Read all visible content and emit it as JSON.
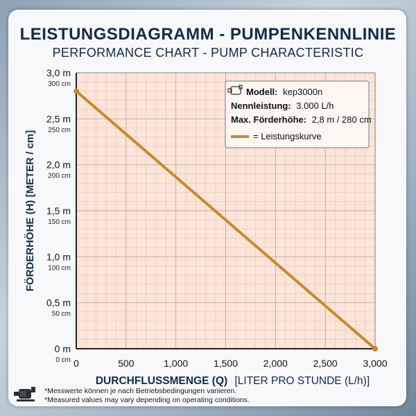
{
  "header": {
    "title": "LEISTUNGSDIAGRAMM - PUMPENKENNLINIE",
    "subtitle": "PERFORMANCE CHART - PUMP CHARACTERISTIC"
  },
  "chart_data": {
    "type": "line",
    "xlabel_bold": "DURCHFLUSSMENGE (Q)",
    "xlabel_rest": "[LITER PRO STUNDE (L/h)]",
    "ylabel": "FÖRDERHÖHE (H) [METER / cm]",
    "xlim": [
      0,
      3000
    ],
    "ylim": [
      0,
      3.0
    ],
    "x_ticks": [
      0,
      500,
      1000,
      1500,
      2000,
      2500,
      3000
    ],
    "x_tick_labels": [
      "0",
      "500",
      "1,000",
      "1,500",
      "2,000",
      "2,500",
      "3,000"
    ],
    "y_ticks": [
      0,
      0.5,
      1.0,
      1.5,
      2.0,
      2.5,
      3.0
    ],
    "y_tick_labels_m": [
      "0 m",
      "0,5 m",
      "1,0 m",
      "1,5 m",
      "2,0 m",
      "2,5 m",
      "3,0 m"
    ],
    "y_tick_labels_cm": [
      "0 cm",
      "50 cm",
      "100 cm",
      "150 cm",
      "200 cm",
      "250 cm",
      "300 cm"
    ],
    "grid": true,
    "series": [
      {
        "name": "Leistungskurve",
        "color": "#c9892a",
        "x": [
          0,
          3000
        ],
        "y": [
          2.8,
          0
        ]
      }
    ],
    "info_box": {
      "placement": "top-right",
      "model_label": "Modell:",
      "model_value": "kep3000n",
      "power_label": "Nennleistung:",
      "power_value": "3.000 L/h",
      "head_label": "Max. Förderhöhe:",
      "head_value": "2,8 m / 280 cm",
      "legend_text": "= Leistungskurve"
    },
    "colors": {
      "plot_bg": "#fbe4d8",
      "grid": "#b9a59b",
      "title": "#132a4a"
    }
  },
  "footer": {
    "note_de": "*Messwerte können je nach Betriebsbedingungen variieren.",
    "note_en": "*Measured values may vary depending on operating conditions."
  }
}
